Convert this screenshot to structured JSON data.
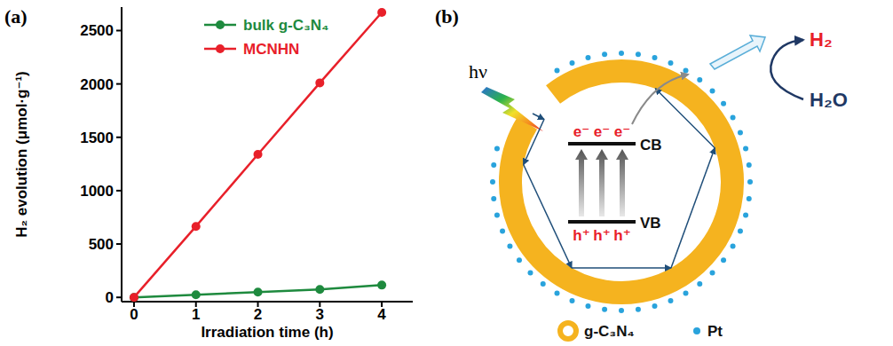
{
  "chart_data": {
    "type": "line",
    "xlabel": "Irradiation time (h)",
    "ylabel": "H₂ evolution (μmol·g⁻¹)",
    "x": [
      0,
      1,
      2,
      3,
      4
    ],
    "series": [
      {
        "name": "bulk g-C₃N₄",
        "color": "#1e8a3e",
        "marker": "circle",
        "values": [
          0,
          25,
          50,
          75,
          115
        ]
      },
      {
        "name": "MCNHN",
        "color": "#e8202a",
        "marker": "circle",
        "values": [
          0,
          665,
          1340,
          2010,
          2670
        ]
      }
    ],
    "xlim": [
      -0.2,
      4.5
    ],
    "xticks": [
      0,
      1,
      2,
      3,
      4
    ],
    "ylim": [
      -40,
      2720
    ],
    "yticks": [
      0,
      500,
      1000,
      1500,
      2000,
      2500
    ],
    "grid": false,
    "legend": "upper left"
  },
  "panel_labels": [
    "(a)",
    "(b)"
  ],
  "diagram": {
    "photon": "hν",
    "electrons": [
      "e⁻",
      "e⁻",
      "e⁻"
    ],
    "holes": [
      "h⁺",
      "h⁺",
      "h⁺"
    ],
    "cb_label": "CB",
    "vb_label": "VB",
    "product": "H₂",
    "reactant": "H₂O",
    "legend": [
      {
        "label": "g-C₃N₄"
      },
      {
        "label": "Pt"
      }
    ]
  }
}
